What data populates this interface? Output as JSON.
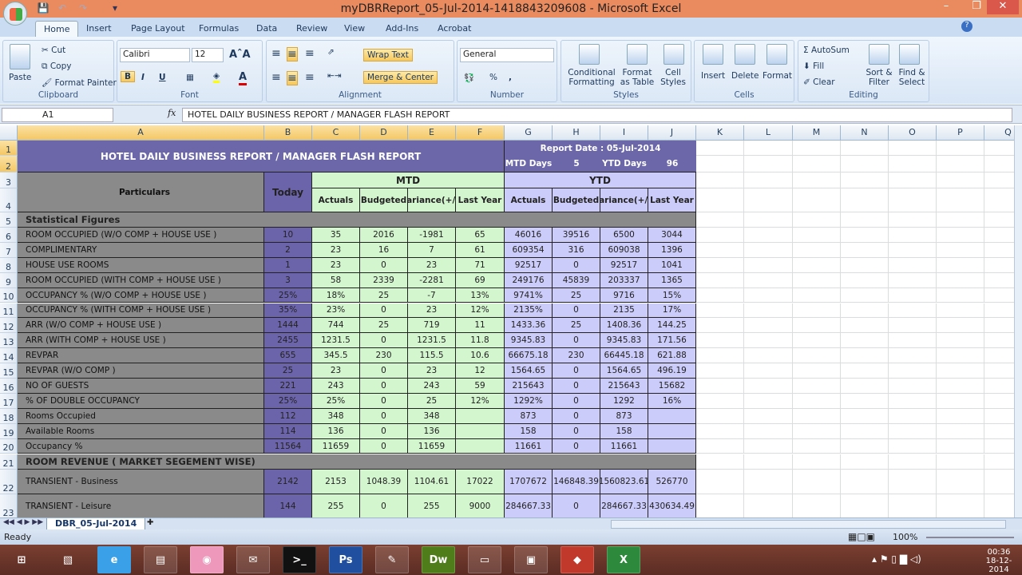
{
  "window": {
    "title": "myDBRReport_05-Jul-2014-1418843209608 - Microsoft Excel"
  },
  "ribbon": {
    "tabs": [
      "Home",
      "Insert",
      "Page Layout",
      "Formulas",
      "Data",
      "Review",
      "View",
      "Add-Ins",
      "Acrobat"
    ],
    "active_tab": "Home",
    "clipboard": {
      "label": "Clipboard",
      "paste": "Paste",
      "cut": "Cut",
      "copy": "Copy",
      "format_painter": "Format Painter"
    },
    "font": {
      "label": "Font",
      "name": "Calibri",
      "size": "12",
      "bold": "B",
      "italic": "I",
      "underline": "U"
    },
    "alignment": {
      "label": "Alignment",
      "wrap_text": "Wrap Text",
      "merge_center": "Merge & Center"
    },
    "number": {
      "label": "Number",
      "format": "General",
      "percent": "%",
      "comma": ","
    },
    "styles": {
      "label": "Styles",
      "conditional": "Conditional Formatting",
      "format_table": "Format as Table",
      "cell_styles": "Cell Styles"
    },
    "cells": {
      "label": "Cells",
      "insert": "Insert",
      "delete": "Delete",
      "format": "Format"
    },
    "editing": {
      "label": "Editing",
      "autosum": "AutoSum",
      "fill": "Fill",
      "clear": "Clear",
      "sort_filter": "Sort & Filter",
      "find_select": "Find & Select"
    }
  },
  "formula_bar": {
    "name_box": "A1",
    "fx": "fx",
    "content": "HOTEL DAILY BUSINESS REPORT / MANAGER FLASH REPORT"
  },
  "columns": [
    "A",
    "B",
    "C",
    "D",
    "E",
    "F",
    "G",
    "H",
    "I",
    "J",
    "K",
    "L",
    "M",
    "N",
    "O",
    "P",
    "Q"
  ],
  "sheet": {
    "title": "HOTEL DAILY BUSINESS REPORT / MANAGER FLASH REPORT",
    "report_date": "Report Date : 05-Jul-2014",
    "mtd_days_label": "MTD Days",
    "mtd_days": "5",
    "ytd_days_label": "YTD Days",
    "ytd_days": "96",
    "particulars": "Particulars",
    "today": "Today",
    "mtd": "MTD",
    "ytd": "YTD",
    "subheaders": [
      "Actuals",
      "Budgeted",
      "Variance(+/-)",
      "Last Year"
    ],
    "section1": "Statistical Figures",
    "section2": "ROOM REVENUE ( MARKET SEGEMENT WISE)",
    "rows": [
      [
        "ROOM OCCUPIED (W/O COMP + HOUSE USE )",
        "10",
        "35",
        "2016",
        "-1981",
        "65",
        "46016",
        "39516",
        "6500",
        "3044"
      ],
      [
        "COMPLIMENTARY",
        "2",
        "23",
        "16",
        "7",
        "61",
        "609354",
        "316",
        "609038",
        "1396"
      ],
      [
        "HOUSE USE ROOMS",
        "1",
        "23",
        "0",
        "23",
        "71",
        "92517",
        "0",
        "92517",
        "1041"
      ],
      [
        "ROOM OCCUPIED (WITH COMP + HOUSE USE )",
        "3",
        "58",
        "2339",
        "-2281",
        "69",
        "249176",
        "45839",
        "203337",
        "1365"
      ],
      [
        "OCCUPANCY %  (W/O COMP + HOUSE USE )",
        "25%",
        "18%",
        "25",
        "-7",
        "13%",
        "9741%",
        "25",
        "9716",
        "15%"
      ],
      [
        "OCCUPANCY %  (WITH COMP + HOUSE USE )",
        "35%",
        "23%",
        "0",
        "23",
        "12%",
        "2135%",
        "0",
        "2135",
        "17%"
      ],
      [
        "ARR (W/O COMP + HOUSE USE )",
        "1444",
        "744",
        "25",
        "719",
        "11",
        "1433.36",
        "25",
        "1408.36",
        "144.25"
      ],
      [
        "ARR  (WITH COMP + HOUSE USE )",
        "2455",
        "1231.5",
        "0",
        "1231.5",
        "11.8",
        "9345.83",
        "0",
        "9345.83",
        "171.56"
      ],
      [
        "REVPAR",
        "655",
        "345.5",
        "230",
        "115.5",
        "10.6",
        "66675.18",
        "230",
        "66445.18",
        "621.88"
      ],
      [
        "REVPAR (W/O COMP )",
        "25",
        "23",
        "0",
        "23",
        "12",
        "1564.65",
        "0",
        "1564.65",
        "496.19"
      ],
      [
        "NO OF GUESTS",
        "221",
        "243",
        "0",
        "243",
        "59",
        "215643",
        "0",
        "215643",
        "15682"
      ],
      [
        "% OF DOUBLE OCCUPANCY",
        "25%",
        "25%",
        "0",
        "25",
        "12%",
        "1292%",
        "0",
        "1292",
        "16%"
      ],
      [
        "Rooms Occupied",
        "112",
        "348",
        "0",
        "348",
        "",
        "873",
        "0",
        "873",
        ""
      ],
      [
        "Available Rooms",
        "114",
        "136",
        "0",
        "136",
        "",
        "158",
        "0",
        "158",
        ""
      ],
      [
        "Occupancy %",
        "11564",
        "11659",
        "0",
        "11659",
        "",
        "11661",
        "0",
        "11661",
        ""
      ]
    ],
    "revenue_rows": [
      [
        "TRANSIENT - Business",
        "2142",
        "2153",
        "1048.39",
        "1104.61",
        "17022",
        "1707672",
        "146848.39",
        "1560823.61",
        "526770"
      ],
      [
        "TRANSIENT - Leisure",
        "144",
        "255",
        "0",
        "255",
        "9000",
        "284667.33",
        "0",
        "284667.33",
        "430634.49"
      ]
    ]
  },
  "sheet_tabs": [
    "DBR_05-Jul-2014"
  ],
  "status": {
    "text": "Ready",
    "zoom": "100%"
  },
  "taskbar": {
    "apps": [
      "start",
      "tablet",
      "internet-explorer",
      "file-explorer",
      "chrome",
      "outlook",
      "command-prompt",
      "photoshop",
      "notepad",
      "dreamweaver",
      "remote-desktop",
      "camera",
      "app-red",
      "excel"
    ],
    "time": "00:36",
    "date": "18-12-2014"
  }
}
